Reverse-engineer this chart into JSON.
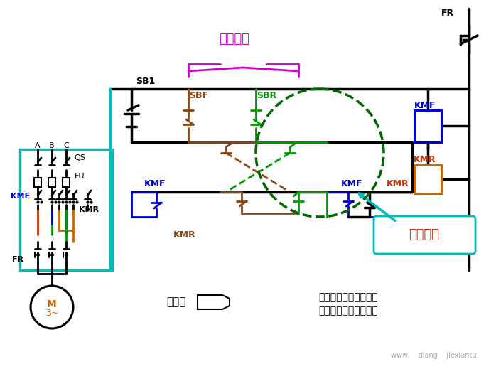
{
  "bg_color": "#ffffff",
  "color_black": "#000000",
  "color_blue": "#0000cc",
  "color_green": "#009900",
  "color_red": "#cc3300",
  "color_brown": "#8B4513",
  "color_orange": "#cc6600",
  "color_magenta": "#cc00cc",
  "color_cyan": "#00bbbb",
  "color_dkgreen": "#006600",
  "label_jixie": "机械互锁",
  "label_dianqi": "电器互锁",
  "label_shuang": "双保险",
  "label_jixie_detail": "机械互锁（复合按钮）",
  "label_dianqi_detail": "电器互锁（互锁触头）",
  "label_FR": "FR",
  "label_KMF_top": "KMF",
  "label_KMR_top": "KMR",
  "label_SB1": "SB1",
  "label_SBF": "SBF",
  "label_SBR": "SBR",
  "label_KMF_mid": "KMF",
  "label_KMR_bot": "KMR",
  "label_KMF_r": "KMF",
  "label_KMR_r": "KMR",
  "label_KMF_l": "KMF",
  "label_KMR_l": "KMR",
  "label_QS": "QS",
  "label_FU": "FU",
  "label_A": "A",
  "label_B": "B",
  "label_C": "C",
  "label_M": "M\n3~",
  "label_FR_l": "FR",
  "watermark": "www.    diang    jiexiantu"
}
